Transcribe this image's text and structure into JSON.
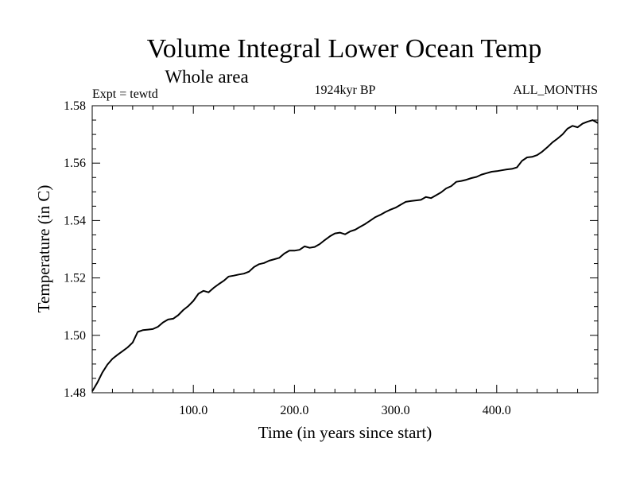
{
  "chart_data": {
    "type": "line",
    "title": "Volume Integral Lower Ocean Temp",
    "subtitle": "Whole area",
    "left_label": "Expt = tewtd",
    "center_label": "1924kyr BP",
    "right_label": "ALL_MONTHS",
    "xlabel": "Time (in years since start)",
    "ylabel": "Temperature (in C)",
    "xlim": [
      0,
      500
    ],
    "ylim": [
      1.48,
      1.58
    ],
    "x_ticks": [
      100,
      200,
      300,
      400
    ],
    "x_tick_labels": [
      "100.0",
      "200.0",
      "300.0",
      "400.0"
    ],
    "y_ticks": [
      1.48,
      1.5,
      1.52,
      1.54,
      1.56,
      1.58
    ],
    "y_tick_labels": [
      "1.48",
      "1.50",
      "1.52",
      "1.54",
      "1.56",
      "1.58"
    ],
    "grid": false,
    "series": [
      {
        "name": "Volume Integral Lower Ocean Temp",
        "color": "#000000",
        "points": [
          [
            0,
            1.4805
          ],
          [
            5,
            1.4835
          ],
          [
            10,
            1.487
          ],
          [
            15,
            1.4898
          ],
          [
            20,
            1.4918
          ],
          [
            25,
            1.4932
          ],
          [
            30,
            1.4945
          ],
          [
            35,
            1.4958
          ],
          [
            40,
            1.4975
          ],
          [
            45,
            1.5012
          ],
          [
            50,
            1.5018
          ],
          [
            55,
            1.502
          ],
          [
            60,
            1.5022
          ],
          [
            65,
            1.503
          ],
          [
            70,
            1.5045
          ],
          [
            75,
            1.5055
          ],
          [
            80,
            1.5058
          ],
          [
            85,
            1.507
          ],
          [
            90,
            1.5088
          ],
          [
            95,
            1.5102
          ],
          [
            100,
            1.512
          ],
          [
            105,
            1.5145
          ],
          [
            110,
            1.5155
          ],
          [
            115,
            1.515
          ],
          [
            120,
            1.5165
          ],
          [
            125,
            1.5178
          ],
          [
            130,
            1.519
          ],
          [
            135,
            1.5205
          ],
          [
            140,
            1.5208
          ],
          [
            145,
            1.5212
          ],
          [
            150,
            1.5215
          ],
          [
            155,
            1.5222
          ],
          [
            160,
            1.5238
          ],
          [
            165,
            1.5248
          ],
          [
            170,
            1.5252
          ],
          [
            175,
            1.526
          ],
          [
            180,
            1.5265
          ],
          [
            185,
            1.527
          ],
          [
            190,
            1.5285
          ],
          [
            195,
            1.5295
          ],
          [
            200,
            1.5295
          ],
          [
            205,
            1.5298
          ],
          [
            210,
            1.531
          ],
          [
            215,
            1.5305
          ],
          [
            220,
            1.5308
          ],
          [
            225,
            1.5318
          ],
          [
            230,
            1.5332
          ],
          [
            235,
            1.5345
          ],
          [
            240,
            1.5355
          ],
          [
            245,
            1.5358
          ],
          [
            250,
            1.5352
          ],
          [
            255,
            1.5362
          ],
          [
            260,
            1.5368
          ],
          [
            265,
            1.5378
          ],
          [
            270,
            1.5388
          ],
          [
            275,
            1.54
          ],
          [
            280,
            1.5412
          ],
          [
            285,
            1.542
          ],
          [
            290,
            1.543
          ],
          [
            295,
            1.5438
          ],
          [
            300,
            1.5445
          ],
          [
            305,
            1.5455
          ],
          [
            310,
            1.5465
          ],
          [
            315,
            1.5468
          ],
          [
            320,
            1.547
          ],
          [
            325,
            1.5472
          ],
          [
            330,
            1.5482
          ],
          [
            335,
            1.5478
          ],
          [
            340,
            1.5488
          ],
          [
            345,
            1.5498
          ],
          [
            350,
            1.5512
          ],
          [
            355,
            1.552
          ],
          [
            360,
            1.5535
          ],
          [
            365,
            1.5538
          ],
          [
            370,
            1.5542
          ],
          [
            375,
            1.5548
          ],
          [
            380,
            1.5552
          ],
          [
            385,
            1.556
          ],
          [
            390,
            1.5565
          ],
          [
            395,
            1.557
          ],
          [
            400,
            1.5572
          ],
          [
            405,
            1.5575
          ],
          [
            410,
            1.5578
          ],
          [
            415,
            1.558
          ],
          [
            420,
            1.5585
          ],
          [
            425,
            1.5608
          ],
          [
            430,
            1.562
          ],
          [
            435,
            1.5622
          ],
          [
            440,
            1.5628
          ],
          [
            445,
            1.564
          ],
          [
            450,
            1.5655
          ],
          [
            455,
            1.5672
          ],
          [
            460,
            1.5685
          ],
          [
            465,
            1.57
          ],
          [
            470,
            1.572
          ],
          [
            475,
            1.573
          ],
          [
            480,
            1.5725
          ],
          [
            485,
            1.5738
          ],
          [
            490,
            1.5745
          ],
          [
            495,
            1.575
          ],
          [
            500,
            1.574
          ]
        ]
      }
    ]
  }
}
